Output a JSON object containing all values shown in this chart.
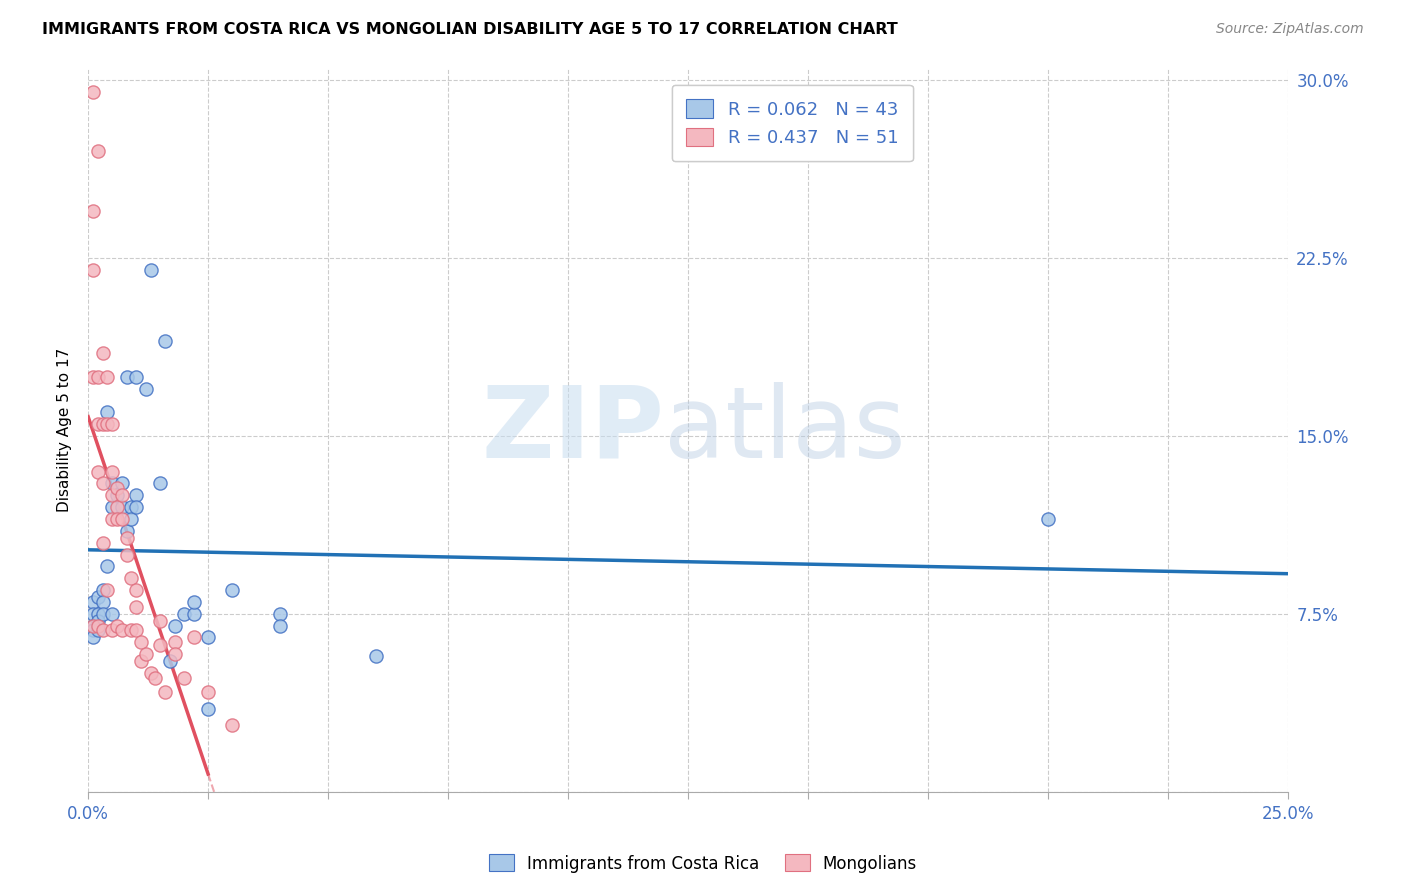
{
  "title": "IMMIGRANTS FROM COSTA RICA VS MONGOLIAN DISABILITY AGE 5 TO 17 CORRELATION CHART",
  "source": "Source: ZipAtlas.com",
  "ylabel": "Disability Age 5 to 17",
  "legend_label1": "Immigrants from Costa Rica",
  "legend_label2": "Mongolians",
  "R1": 0.062,
  "N1": 43,
  "R2": 0.437,
  "N2": 51,
  "color1": "#a8c8e8",
  "color2": "#f4b8c0",
  "edge1": "#4472c4",
  "edge2": "#e07080",
  "trendline1_color": "#2171b5",
  "trendline2_color": "#e05060",
  "xlim": [
    0.0,
    0.25
  ],
  "ylim": [
    0.0,
    0.305
  ],
  "yticks": [
    0.0,
    0.075,
    0.15,
    0.225,
    0.3
  ],
  "yticklabels_right": [
    "",
    "7.5%",
    "15.0%",
    "22.5%",
    "30.0%"
  ],
  "xtick_labels_left": "0.0%",
  "xtick_labels_right": "25.0%",
  "watermark_zip": "ZIP",
  "watermark_atlas": "atlas",
  "blue_x": [
    0.001,
    0.001,
    0.001,
    0.001,
    0.001,
    0.002,
    0.002,
    0.002,
    0.002,
    0.003,
    0.003,
    0.003,
    0.004,
    0.004,
    0.005,
    0.005,
    0.005,
    0.006,
    0.007,
    0.007,
    0.008,
    0.008,
    0.009,
    0.009,
    0.01,
    0.01,
    0.01,
    0.012,
    0.013,
    0.015,
    0.016,
    0.017,
    0.018,
    0.02,
    0.022,
    0.022,
    0.025,
    0.025,
    0.03,
    0.04,
    0.04,
    0.06,
    0.2
  ],
  "blue_y": [
    0.08,
    0.075,
    0.07,
    0.068,
    0.065,
    0.082,
    0.075,
    0.072,
    0.068,
    0.085,
    0.08,
    0.075,
    0.16,
    0.095,
    0.13,
    0.12,
    0.075,
    0.125,
    0.13,
    0.12,
    0.175,
    0.11,
    0.12,
    0.115,
    0.175,
    0.125,
    0.12,
    0.17,
    0.22,
    0.13,
    0.19,
    0.055,
    0.07,
    0.075,
    0.075,
    0.08,
    0.065,
    0.035,
    0.085,
    0.075,
    0.07,
    0.057,
    0.115
  ],
  "pink_x": [
    0.001,
    0.001,
    0.001,
    0.001,
    0.001,
    0.002,
    0.002,
    0.002,
    0.002,
    0.002,
    0.003,
    0.003,
    0.003,
    0.003,
    0.003,
    0.004,
    0.004,
    0.004,
    0.005,
    0.005,
    0.005,
    0.005,
    0.005,
    0.006,
    0.006,
    0.006,
    0.006,
    0.007,
    0.007,
    0.007,
    0.008,
    0.008,
    0.009,
    0.009,
    0.01,
    0.01,
    0.01,
    0.011,
    0.011,
    0.012,
    0.013,
    0.014,
    0.015,
    0.015,
    0.016,
    0.018,
    0.018,
    0.02,
    0.022,
    0.025,
    0.03
  ],
  "pink_y": [
    0.295,
    0.245,
    0.22,
    0.175,
    0.07,
    0.27,
    0.175,
    0.155,
    0.135,
    0.07,
    0.185,
    0.155,
    0.13,
    0.105,
    0.068,
    0.175,
    0.155,
    0.085,
    0.155,
    0.135,
    0.125,
    0.115,
    0.068,
    0.128,
    0.12,
    0.115,
    0.07,
    0.125,
    0.115,
    0.068,
    0.107,
    0.1,
    0.09,
    0.068,
    0.085,
    0.078,
    0.068,
    0.063,
    0.055,
    0.058,
    0.05,
    0.048,
    0.072,
    0.062,
    0.042,
    0.063,
    0.058,
    0.048,
    0.065,
    0.042,
    0.028
  ]
}
